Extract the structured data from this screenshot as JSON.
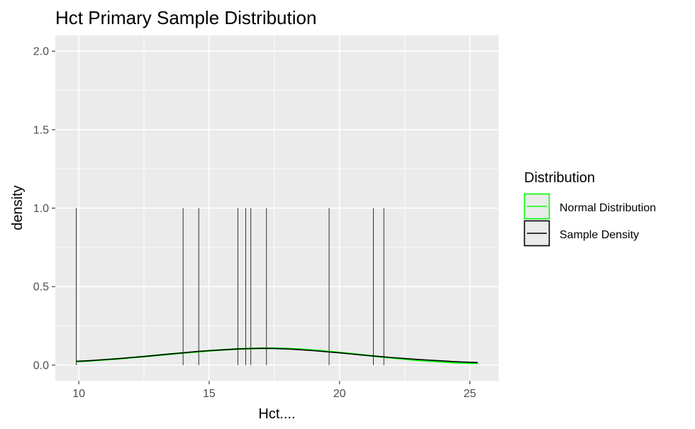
{
  "chart_data": {
    "type": "line",
    "title": "Hct Primary Sample Distribution",
    "xlabel": "Hct....",
    "ylabel": "density",
    "xlim": [
      9.1,
      26.1
    ],
    "ylim": [
      -0.1,
      2.1
    ],
    "x_ticks": [
      10,
      15,
      20,
      25
    ],
    "y_ticks": [
      0.0,
      0.5,
      1.0,
      1.5,
      2.0
    ],
    "y_tick_labels": [
      "0.0",
      "0.5",
      "1.0",
      "1.5",
      "2.0"
    ],
    "grid": true,
    "background": "#ebebeb",
    "rug": {
      "x": [
        9.9,
        14.0,
        14.6,
        16.1,
        16.4,
        16.6,
        17.2,
        19.6,
        21.3,
        21.7
      ],
      "height": 1.0
    },
    "legend": {
      "title": "Distribution",
      "placement": "right"
    },
    "series": [
      {
        "name": "Normal Distribution",
        "color": "#00ff00",
        "x": [
          9.9,
          10.5,
          11.0,
          11.5,
          12.0,
          12.5,
          13.0,
          13.5,
          14.0,
          14.5,
          15.0,
          15.5,
          16.0,
          16.5,
          17.0,
          17.5,
          18.0,
          18.5,
          19.0,
          19.5,
          20.0,
          20.5,
          21.0,
          21.5,
          22.0,
          22.5,
          23.0,
          23.5,
          24.0,
          24.5,
          25.3
        ],
        "values": [
          0.022,
          0.028,
          0.034,
          0.04,
          0.047,
          0.054,
          0.062,
          0.07,
          0.077,
          0.084,
          0.091,
          0.097,
          0.102,
          0.105,
          0.107,
          0.107,
          0.105,
          0.101,
          0.095,
          0.088,
          0.08,
          0.072,
          0.063,
          0.054,
          0.046,
          0.038,
          0.031,
          0.025,
          0.02,
          0.015,
          0.011
        ]
      },
      {
        "name": "Sample Density",
        "color": "#000000",
        "x": [
          9.9,
          10.5,
          11.0,
          11.5,
          12.0,
          12.5,
          13.0,
          13.5,
          14.0,
          14.5,
          15.0,
          15.5,
          16.0,
          16.5,
          17.0,
          17.5,
          18.0,
          18.5,
          19.0,
          19.5,
          20.0,
          20.5,
          21.0,
          21.5,
          22.0,
          22.5,
          23.0,
          23.5,
          24.0,
          24.5,
          25.3
        ],
        "values": [
          0.024,
          0.029,
          0.035,
          0.041,
          0.048,
          0.055,
          0.063,
          0.071,
          0.078,
          0.086,
          0.092,
          0.097,
          0.102,
          0.105,
          0.107,
          0.106,
          0.103,
          0.098,
          0.092,
          0.085,
          0.078,
          0.07,
          0.062,
          0.055,
          0.048,
          0.042,
          0.036,
          0.031,
          0.026,
          0.021,
          0.016
        ]
      }
    ]
  }
}
